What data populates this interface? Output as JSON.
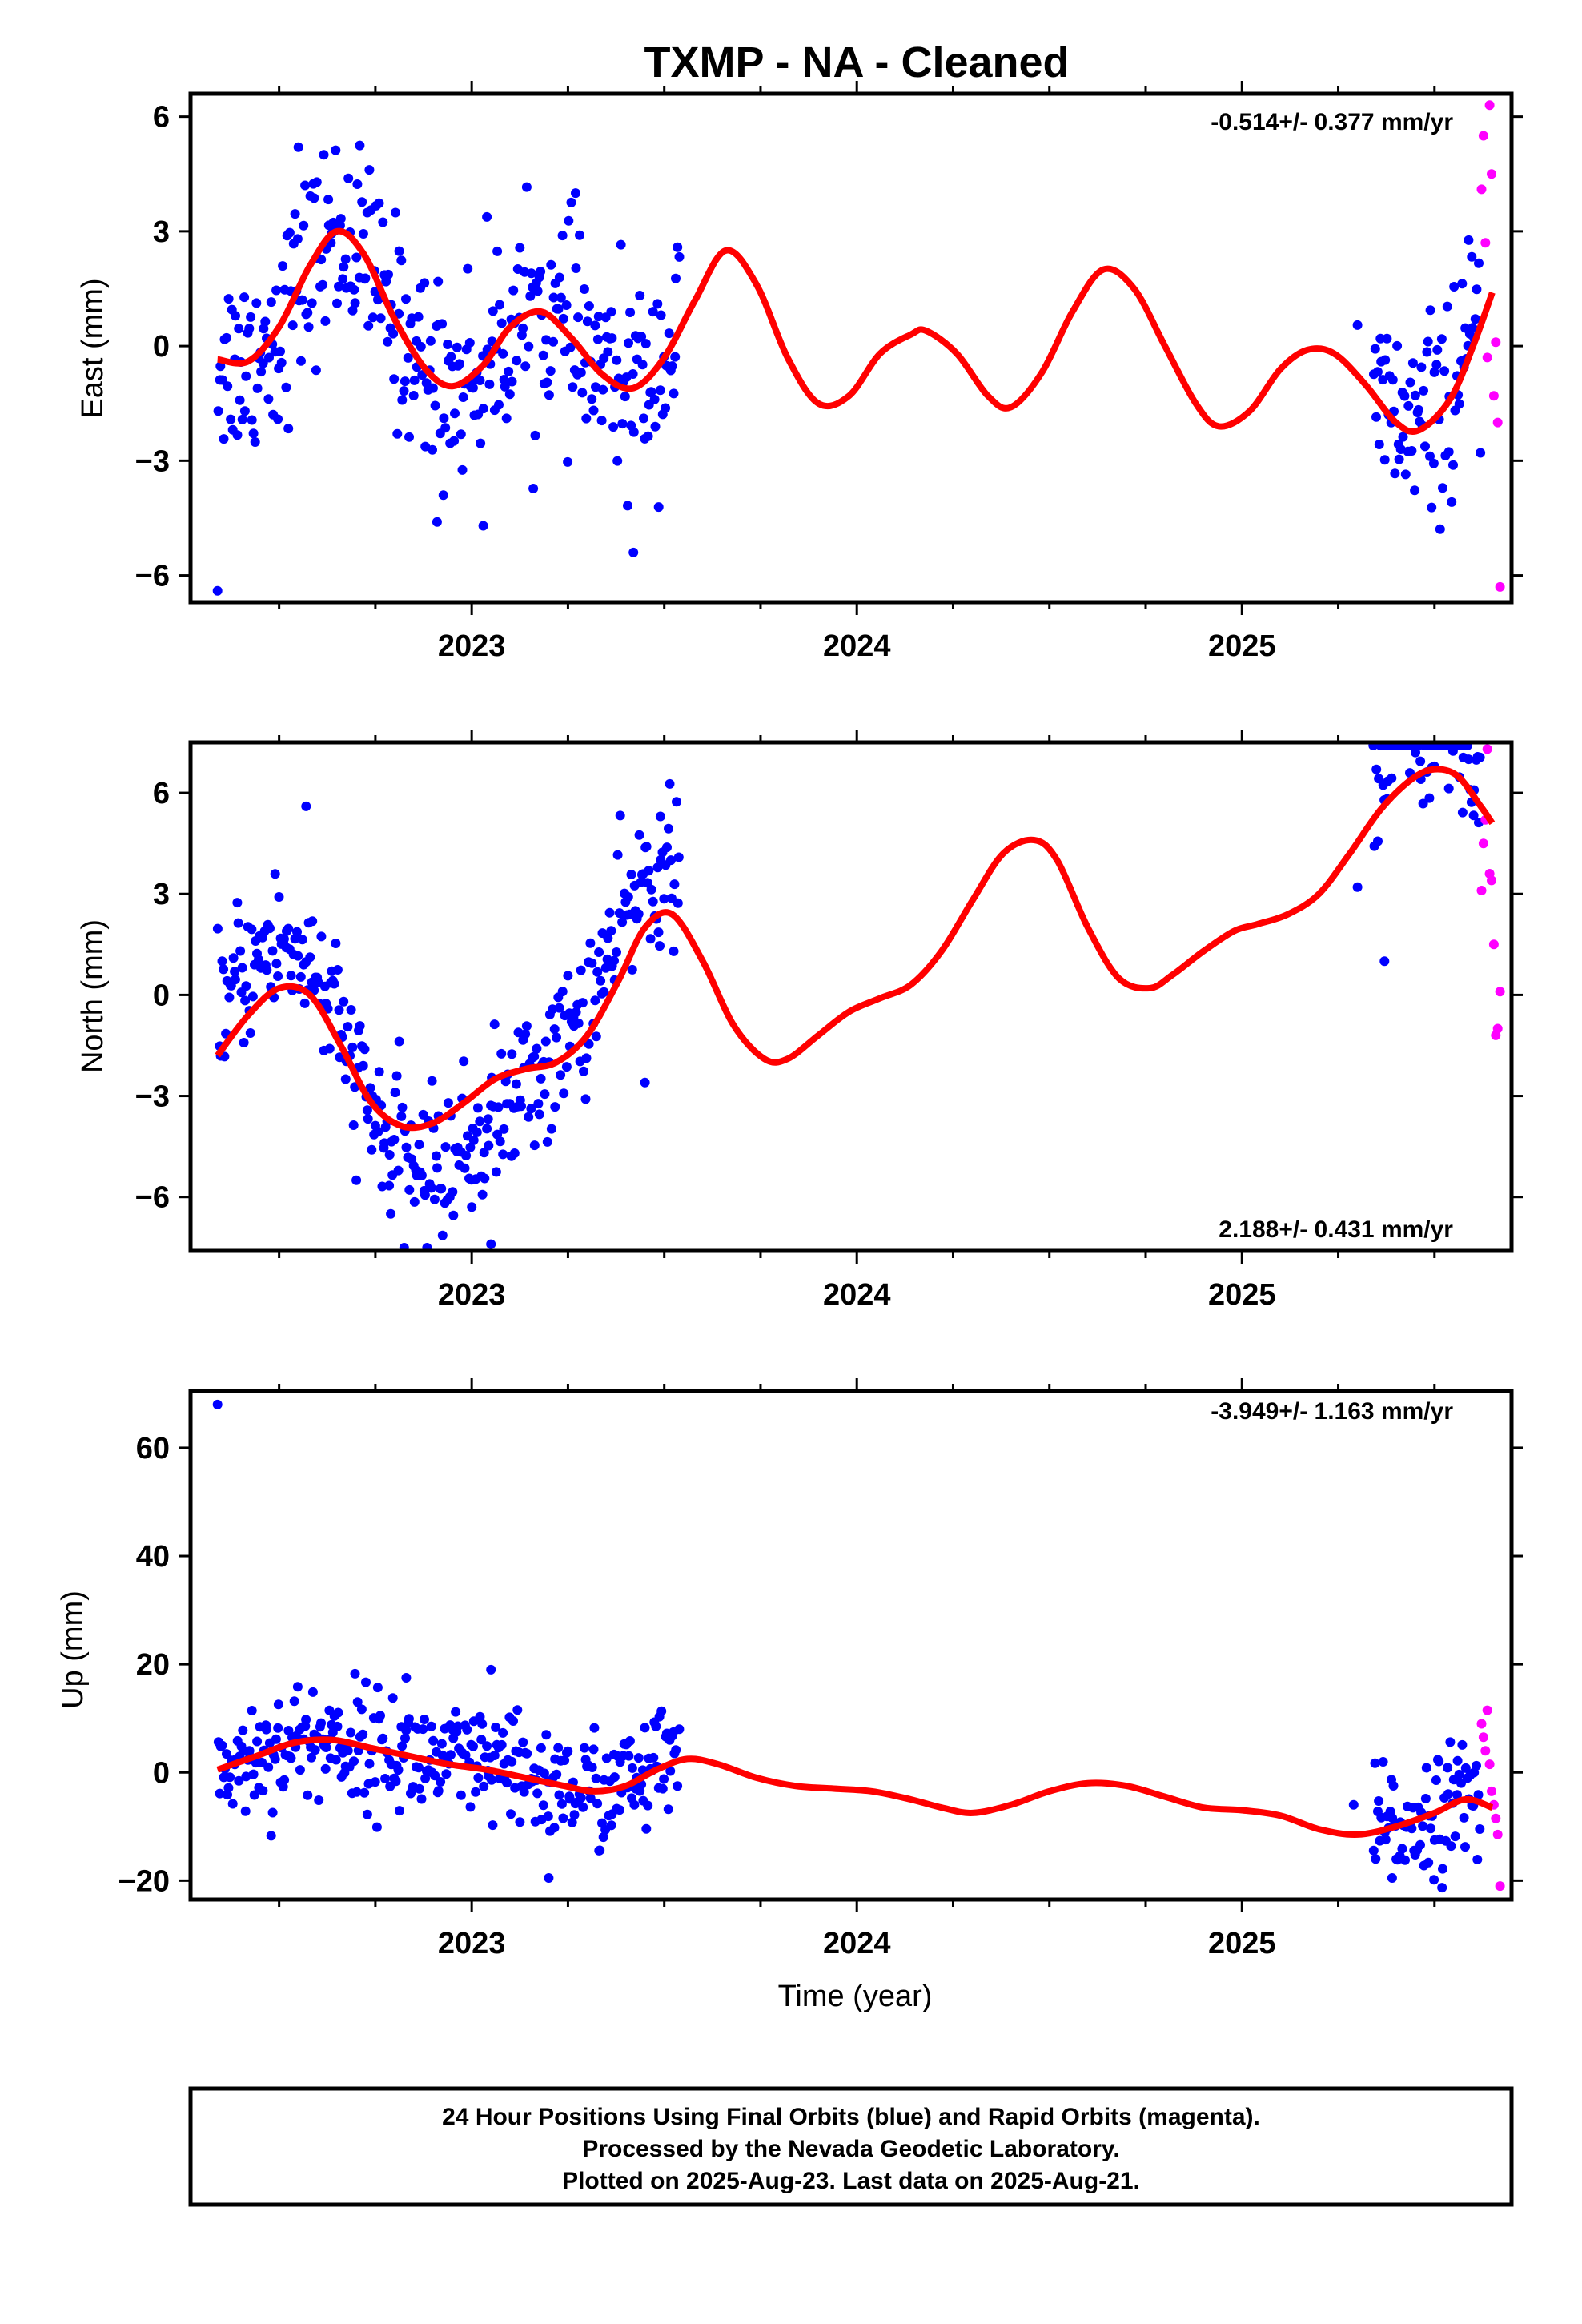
{
  "title": "TXMP  - NA - Cleaned",
  "footer": {
    "lines": [
      "24 Hour Positions Using Final Orbits (blue) and Rapid Orbits (magenta).",
      "Processed by the Nevada Geodetic Laboratory.",
      "Plotted on 2025-Aug-23. Last data on 2025-Aug-21."
    ]
  },
  "colors": {
    "final": "#0000ff",
    "rapid": "#ff00ff",
    "fit": "#ff0000",
    "axis": "#000000"
  },
  "chart_data": [
    {
      "type": "scatter",
      "name": "east",
      "ylabel": "East (mm)",
      "xlabel": "",
      "xlim": [
        2022.27,
        2025.7
      ],
      "ylim": [
        -6.7,
        6.6
      ],
      "yticks": [
        6,
        3,
        0,
        -3,
        -6
      ],
      "yticklabels": [
        "6",
        "3",
        "0",
        "−3",
        "−6"
      ],
      "xticks": [
        2023,
        2024,
        2025
      ],
      "xticklabels": [
        "2023",
        "2024",
        "2025"
      ],
      "rate_label": "-0.514+/- 0.377 mm/yr",
      "rate_position": "top-right",
      "fit": {
        "x": [
          2022.34,
          2022.42,
          2022.5,
          2022.58,
          2022.65,
          2022.72,
          2022.8,
          2022.88,
          2022.95,
          2023.03,
          2023.1,
          2023.18,
          2023.26,
          2023.34,
          2023.42,
          2023.5,
          2023.58,
          2023.66,
          2023.74,
          2023.82,
          2023.9,
          2023.98,
          2024.06,
          2024.14,
          2024.18,
          2024.26,
          2024.34,
          2024.4,
          2024.48,
          2024.56,
          2024.64,
          2024.72,
          2024.8,
          2024.88,
          2024.94,
          2025.02,
          2025.1,
          2025.17,
          2025.24,
          2025.32,
          2025.4,
          2025.46,
          2025.54,
          2025.6,
          2025.65
        ],
        "y": [
          -0.35,
          -0.4,
          0.5,
          2.1,
          3.0,
          2.4,
          0.7,
          -0.6,
          -1.05,
          -0.5,
          0.5,
          0.9,
          0.2,
          -0.75,
          -1.1,
          -0.3,
          1.2,
          2.5,
          1.6,
          -0.3,
          -1.5,
          -1.3,
          -0.2,
          0.3,
          0.4,
          -0.2,
          -1.3,
          -1.6,
          -0.7,
          0.9,
          2.0,
          1.5,
          0.0,
          -1.5,
          -2.1,
          -1.7,
          -0.6,
          -0.1,
          -0.2,
          -1.0,
          -2.0,
          -2.2,
          -1.4,
          0.0,
          1.4
        ]
      },
      "final_ranges": [
        [
          2022.34,
          2023.54
        ],
        [
          2025.34,
          2025.62
        ]
      ],
      "final_count": 420,
      "final_sigma": 1.3,
      "final_outliers": [
        [
          2022.34,
          -6.4
        ],
        [
          2022.91,
          -4.6
        ],
        [
          2023.03,
          -4.7
        ],
        [
          2023.42,
          -5.4
        ],
        [
          2023.27,
          4.0
        ],
        [
          2022.55,
          5.2
        ],
        [
          2025.3,
          0.55
        ]
      ],
      "rapid": {
        "x": [
          2025.622,
          2025.627,
          2025.632,
          2025.637,
          2025.643,
          2025.648,
          2025.654,
          2025.659,
          2025.664,
          2025.67
        ],
        "y": [
          4.1,
          5.5,
          2.7,
          -0.3,
          6.3,
          4.5,
          -1.3,
          0.1,
          -2.0,
          -6.3
        ]
      }
    },
    {
      "type": "scatter",
      "name": "north",
      "ylabel": "North (mm)",
      "xlabel": "",
      "xlim": [
        2022.27,
        2025.7
      ],
      "ylim": [
        -7.6,
        7.5
      ],
      "yticks": [
        6,
        3,
        0,
        -3,
        -6
      ],
      "yticklabels": [
        "6",
        "3",
        "0",
        "−3",
        "−6"
      ],
      "xticks": [
        2023,
        2024,
        2025
      ],
      "xticklabels": [
        "2023",
        "2024",
        "2025"
      ],
      "rate_label": "2.188+/- 0.431 mm/yr",
      "rate_position": "bottom-right",
      "fit": {
        "x": [
          2022.34,
          2022.42,
          2022.5,
          2022.58,
          2022.66,
          2022.74,
          2022.82,
          2022.9,
          2022.98,
          2023.06,
          2023.14,
          2023.22,
          2023.3,
          2023.38,
          2023.45,
          2023.52,
          2023.6,
          2023.68,
          2023.76,
          2023.82,
          2023.9,
          2023.98,
          2024.06,
          2024.14,
          2024.22,
          2024.3,
          2024.38,
          2024.46,
          2024.52,
          2024.6,
          2024.68,
          2024.76,
          2024.82,
          2024.9,
          2024.98,
          2025.04,
          2025.12,
          2025.2,
          2025.28,
          2025.36,
          2025.44,
          2025.5,
          2025.56,
          2025.62,
          2025.65
        ],
        "y": [
          -1.8,
          -0.6,
          0.2,
          0.0,
          -1.5,
          -3.2,
          -3.9,
          -3.8,
          -3.2,
          -2.5,
          -2.2,
          -2.0,
          -1.2,
          0.4,
          2.0,
          2.4,
          1.0,
          -0.9,
          -1.9,
          -1.9,
          -1.2,
          -0.5,
          -0.1,
          0.3,
          1.3,
          2.8,
          4.2,
          4.6,
          4.0,
          2.0,
          0.5,
          0.2,
          0.6,
          1.3,
          1.9,
          2.1,
          2.4,
          3.0,
          4.2,
          5.5,
          6.4,
          6.7,
          6.5,
          5.6,
          5.1
        ]
      },
      "final_ranges": [
        [
          2022.34,
          2023.54
        ],
        [
          2025.34,
          2025.62
        ]
      ],
      "final_count": 420,
      "final_sigma": 1.1,
      "final_outliers": [
        [
          2022.57,
          5.6
        ],
        [
          2022.79,
          -6.5
        ],
        [
          2023.05,
          -7.4
        ],
        [
          2023.0,
          -6.3
        ],
        [
          2023.45,
          -2.6
        ],
        [
          2023.49,
          5.3
        ],
        [
          2025.3,
          3.2
        ],
        [
          2025.37,
          1.0
        ]
      ],
      "rapid": {
        "x": [
          2025.622,
          2025.627,
          2025.632,
          2025.637,
          2025.643,
          2025.648,
          2025.654,
          2025.659,
          2025.664,
          2025.67
        ],
        "y": [
          3.1,
          4.5,
          5.2,
          7.3,
          3.6,
          3.4,
          1.5,
          -1.2,
          -1.0,
          0.1
        ]
      }
    },
    {
      "type": "scatter",
      "name": "up",
      "ylabel": "Up (mm)",
      "xlabel": "Time (year)",
      "xlim": [
        2022.27,
        2025.7
      ],
      "ylim": [
        -23.5,
        70.5
      ],
      "yticks": [
        60,
        40,
        20,
        0,
        -20
      ],
      "yticklabels": [
        "60",
        "40",
        "20",
        "0",
        "−20"
      ],
      "xticks": [
        2023,
        2024,
        2025
      ],
      "xticklabels": [
        "2023",
        "2024",
        "2025"
      ],
      "rate_label": "-3.949+/- 1.163 mm/yr",
      "rate_position": "top-right",
      "fit": {
        "x": [
          2022.34,
          2022.44,
          2022.54,
          2022.64,
          2022.74,
          2022.84,
          2022.94,
          2023.04,
          2023.14,
          2023.24,
          2023.32,
          2023.4,
          2023.48,
          2023.56,
          2023.64,
          2023.74,
          2023.84,
          2023.94,
          2024.04,
          2024.14,
          2024.22,
          2024.3,
          2024.4,
          2024.5,
          2024.6,
          2024.7,
          2024.8,
          2024.9,
          2025.0,
          2025.1,
          2025.2,
          2025.3,
          2025.4,
          2025.5,
          2025.58,
          2025.65
        ],
        "y": [
          0.5,
          3.0,
          5.5,
          6.0,
          4.5,
          3.0,
          1.5,
          0.5,
          -1.0,
          -2.5,
          -3.5,
          -2.5,
          0.5,
          2.5,
          1.5,
          -1.0,
          -2.5,
          -3.0,
          -3.5,
          -5.0,
          -6.5,
          -7.5,
          -6.0,
          -3.5,
          -2.0,
          -2.5,
          -4.5,
          -6.5,
          -7.0,
          -8.0,
          -10.5,
          -11.5,
          -10.0,
          -7.5,
          -5.0,
          -6.5
        ]
      },
      "final_ranges": [
        [
          2022.34,
          2023.54
        ],
        [
          2025.34,
          2025.62
        ]
      ],
      "final_count": 420,
      "final_sigma": 5.5,
      "final_outliers": [
        [
          2022.34,
          68.0
        ],
        [
          2023.05,
          19.0
        ],
        [
          2023.2,
          -19.5
        ],
        [
          2022.83,
          17.5
        ],
        [
          2025.29,
          -6.0
        ],
        [
          2025.39,
          -19.5
        ]
      ],
      "rapid": {
        "x": [
          2025.622,
          2025.627,
          2025.632,
          2025.637,
          2025.643,
          2025.648,
          2025.654,
          2025.659,
          2025.664,
          2025.67
        ],
        "y": [
          9.0,
          6.5,
          4.0,
          11.5,
          1.5,
          -3.5,
          -6.0,
          -8.5,
          -11.5,
          -21.0
        ]
      }
    }
  ]
}
